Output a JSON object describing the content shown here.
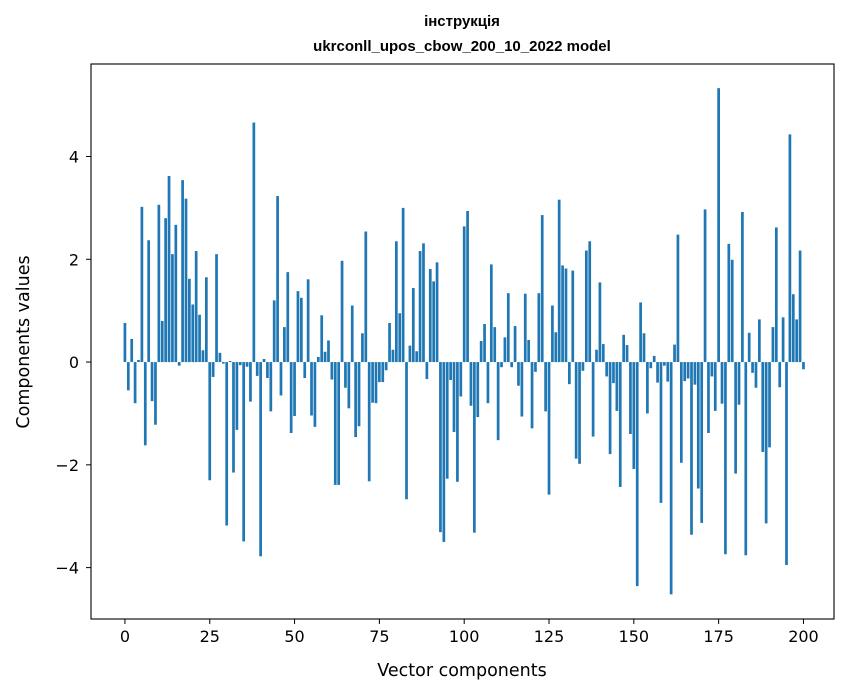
{
  "chart_data": {
    "type": "bar",
    "title": "інструкція",
    "subtitle": "ukrconll_upos_cbow_200_10_2022 model",
    "xlabel": "Vector components",
    "ylabel": "Components values",
    "xlim": [
      -10,
      209
    ],
    "ylim": [
      -5.0,
      5.8
    ],
    "xticks": [
      0,
      25,
      50,
      75,
      100,
      125,
      150,
      175,
      200
    ],
    "yticks": [
      -4,
      -2,
      0,
      2,
      4
    ],
    "ytick_labels": [
      "−4",
      "−2",
      "0",
      "2",
      "4"
    ],
    "bar_color": "#1f77b4",
    "series": [
      {
        "name": "components",
        "values": [
          0.76,
          -0.55,
          0.45,
          -0.8,
          0.04,
          3.02,
          -1.62,
          2.37,
          -0.76,
          -1.22,
          3.06,
          0.8,
          2.8,
          3.62,
          2.1,
          2.67,
          -0.07,
          3.54,
          3.18,
          1.62,
          1.12,
          2.16,
          0.92,
          0.23,
          1.65,
          -2.3,
          -0.29,
          2.1,
          0.18,
          -0.03,
          -3.18,
          0.02,
          -2.15,
          -1.32,
          -0.06,
          -3.49,
          -0.09,
          -0.77,
          4.66,
          -0.27,
          -3.78,
          0.06,
          -0.31,
          -0.96,
          1.2,
          3.23,
          -0.65,
          0.68,
          1.75,
          -1.38,
          -1.05,
          1.38,
          1.25,
          -0.31,
          1.61,
          -1.04,
          -1.26,
          0.1,
          0.91,
          0.2,
          0.42,
          -0.34,
          -2.39,
          -2.39,
          1.97,
          -0.5,
          -0.9,
          1.1,
          -1.46,
          -1.25,
          0.56,
          2.54,
          -2.32,
          -0.79,
          -0.8,
          -0.39,
          -0.39,
          -0.16,
          0.76,
          0.24,
          2.35,
          0.95,
          3.0,
          -2.67,
          0.32,
          1.44,
          0.21,
          2.16,
          2.31,
          -0.33,
          1.81,
          1.57,
          1.94,
          -3.31,
          -3.5,
          -2.27,
          -0.35,
          -1.36,
          -2.33,
          -0.67,
          2.64,
          2.94,
          -0.85,
          -3.32,
          -1.07,
          0.41,
          0.74,
          -0.8,
          1.9,
          0.68,
          -1.52,
          -0.1,
          0.48,
          1.34,
          -0.1,
          0.7,
          -0.46,
          -1.06,
          1.33,
          0.43,
          -1.29,
          -0.19,
          1.34,
          2.86,
          -0.96,
          -2.58,
          1.1,
          0.58,
          3.16,
          1.88,
          1.82,
          -0.43,
          1.78,
          -1.88,
          -1.98,
          -0.17,
          2.17,
          2.35,
          -1.45,
          0.24,
          1.55,
          0.35,
          -0.28,
          -1.79,
          -0.41,
          -0.95,
          -2.43,
          0.53,
          0.33,
          -1.4,
          -2.08,
          -4.36,
          1.16,
          0.56,
          -1.0,
          -0.12,
          0.12,
          -0.4,
          -2.74,
          -0.07,
          -0.38,
          -4.52,
          0.34,
          2.48,
          -1.96,
          -0.37,
          -0.32,
          -3.36,
          -0.44,
          -2.46,
          -3.13,
          2.97,
          -1.38,
          -0.28,
          -0.95,
          5.33,
          -0.81,
          -3.74,
          2.3,
          1.99,
          -2.17,
          -0.83,
          2.92,
          -3.76,
          0.57,
          -0.21,
          -0.5,
          0.83,
          -1.75,
          -3.14,
          -1.66,
          0.68,
          2.62,
          -0.49,
          0.87,
          -3.95,
          4.43,
          1.32,
          0.83,
          2.17,
          -0.14
        ]
      }
    ]
  }
}
